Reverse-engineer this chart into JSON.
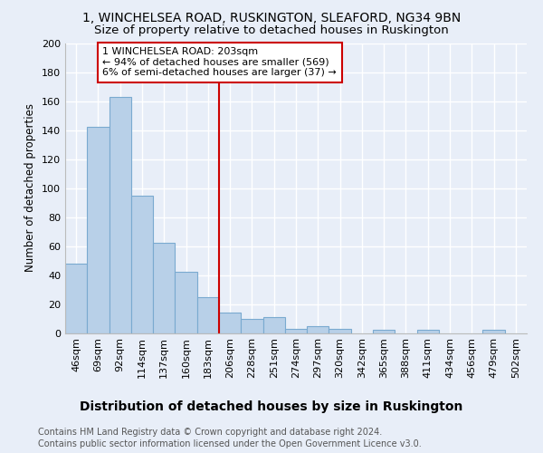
{
  "title": "1, WINCHELSEA ROAD, RUSKINGTON, SLEAFORD, NG34 9BN",
  "subtitle": "Size of property relative to detached houses in Ruskington",
  "xlabel": "Distribution of detached houses by size in Ruskington",
  "ylabel": "Number of detached properties",
  "bar_color": "#b8d0e8",
  "bar_edge_color": "#7aaad0",
  "background_color": "#e8eef8",
  "grid_color": "#ffffff",
  "categories": [
    "46sqm",
    "69sqm",
    "92sqm",
    "114sqm",
    "137sqm",
    "160sqm",
    "183sqm",
    "206sqm",
    "228sqm",
    "251sqm",
    "274sqm",
    "297sqm",
    "320sqm",
    "342sqm",
    "365sqm",
    "388sqm",
    "411sqm",
    "434sqm",
    "456sqm",
    "479sqm",
    "502sqm"
  ],
  "values": [
    48,
    142,
    163,
    95,
    62,
    42,
    25,
    14,
    10,
    11,
    3,
    5,
    3,
    0,
    2,
    0,
    2,
    0,
    0,
    2,
    0
  ],
  "vline_index": 7,
  "vline_color": "#cc0000",
  "annotation_line1": "1 WINCHELSEA ROAD: 203sqm",
  "annotation_line2": "← 94% of detached houses are smaller (569)",
  "annotation_line3": "6% of semi-detached houses are larger (37) →",
  "annotation_box_color": "#ffffff",
  "annotation_box_edge": "#cc0000",
  "ylim": [
    0,
    200
  ],
  "yticks": [
    0,
    20,
    40,
    60,
    80,
    100,
    120,
    140,
    160,
    180,
    200
  ],
  "footer1": "Contains HM Land Registry data © Crown copyright and database right 2024.",
  "footer2": "Contains public sector information licensed under the Open Government Licence v3.0.",
  "title_fontsize": 10,
  "subtitle_fontsize": 9.5,
  "xlabel_fontsize": 10,
  "ylabel_fontsize": 8.5,
  "tick_fontsize": 8,
  "annotation_fontsize": 8,
  "footer_fontsize": 7
}
